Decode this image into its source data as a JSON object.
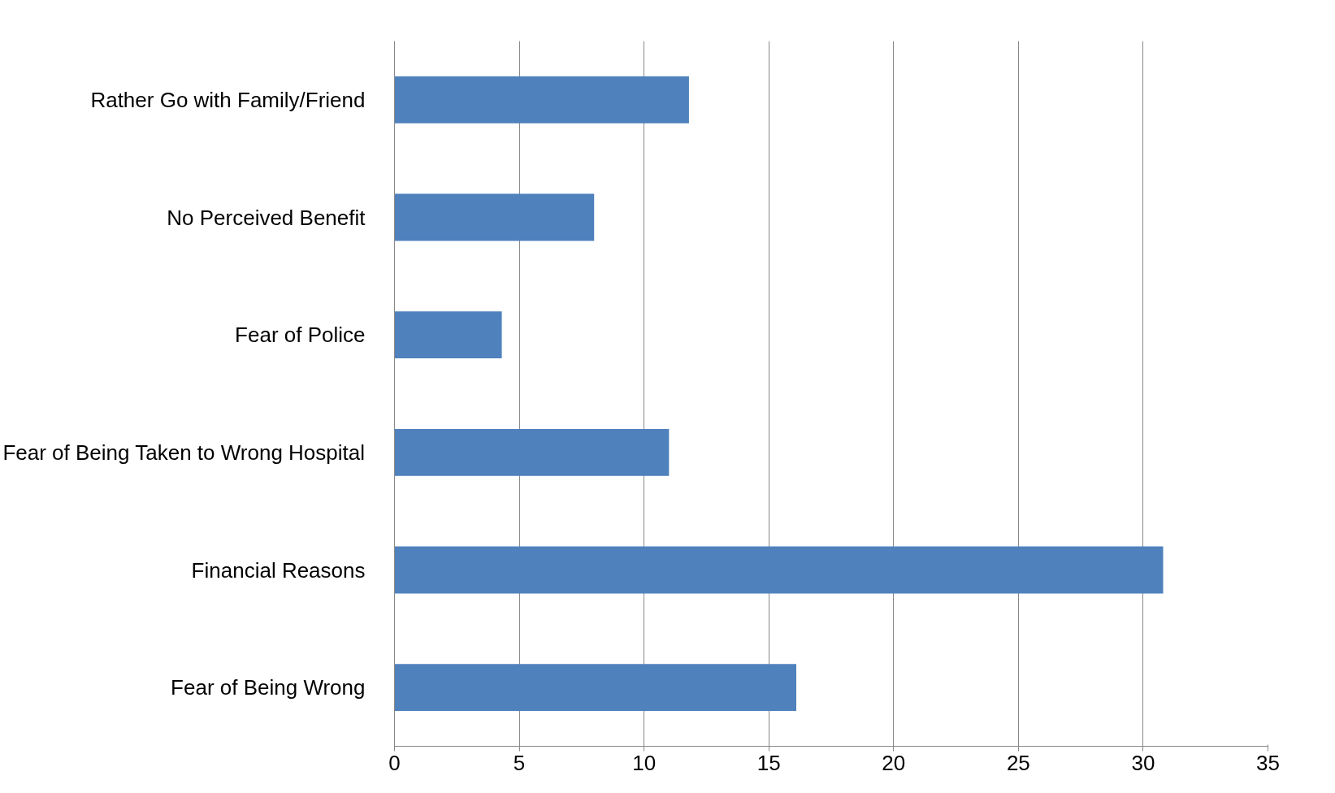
{
  "chart_data": {
    "type": "bar",
    "orientation": "horizontal",
    "categories": [
      "Rather Go with Family/Friend",
      "No Perceived Benefit",
      "Fear of Police",
      "Fear of Being Taken to Wrong Hospital",
      "Financial Reasons",
      "Fear of Being Wrong"
    ],
    "values": [
      11.8,
      8.0,
      4.3,
      11.0,
      30.8,
      16.1
    ],
    "color": "#4f81bd",
    "xlim": [
      0,
      35
    ],
    "xticks": [
      0,
      5,
      10,
      15,
      20,
      25,
      30,
      35
    ],
    "grid": "x"
  }
}
